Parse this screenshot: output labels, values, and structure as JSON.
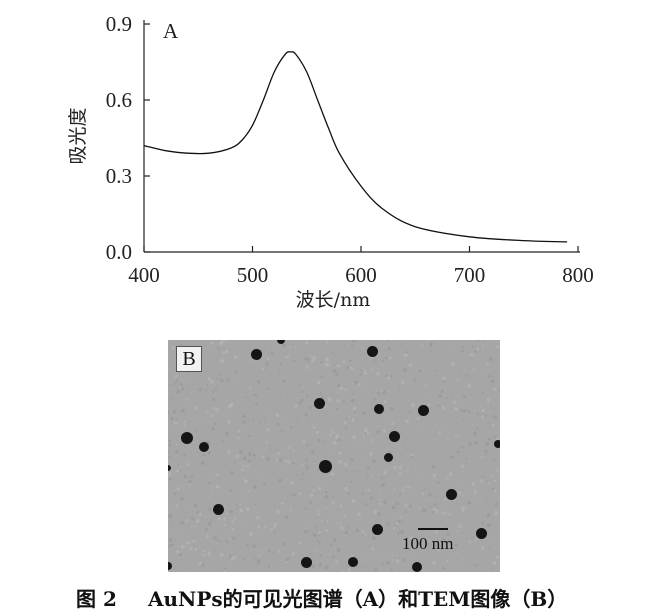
{
  "chart_data": {
    "type": "line",
    "panel_label": "A",
    "xlabel": "波长/nm",
    "ylabel": "吸光度",
    "xlim": [
      400,
      800
    ],
    "ylim": [
      0.0,
      0.9
    ],
    "xticks": [
      "400",
      "500",
      "600",
      "700",
      "800"
    ],
    "yticks": [
      "0.0",
      "0.3",
      "0.6",
      "0.9"
    ],
    "series": [
      {
        "name": "AuNPs",
        "x": [
          400,
          420,
          440,
          460,
          480,
          490,
          500,
          510,
          520,
          530,
          535,
          540,
          550,
          560,
          570,
          580,
          600,
          620,
          650,
          700,
          750,
          790
        ],
        "y": [
          0.42,
          0.4,
          0.39,
          0.39,
          0.41,
          0.44,
          0.5,
          0.6,
          0.71,
          0.78,
          0.79,
          0.78,
          0.71,
          0.6,
          0.49,
          0.39,
          0.26,
          0.17,
          0.1,
          0.06,
          0.045,
          0.04
        ]
      }
    ]
  },
  "tem": {
    "panel_label": "B",
    "scale_label": "100 nm"
  },
  "caption": {
    "figure_number": "图 2",
    "text": "AuNPs的可见光图谱（A）和TEM图像（B）"
  }
}
